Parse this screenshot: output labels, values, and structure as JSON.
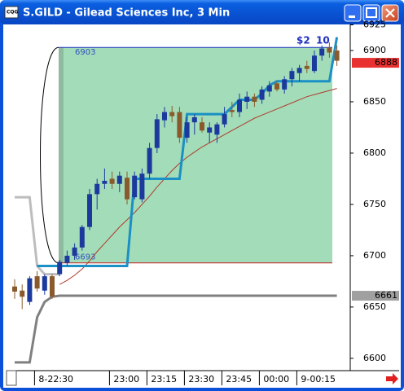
{
  "chart_data": {
    "type": "candlestick",
    "title": "S.GILD - Gilead Sciences Inc, 3 Min",
    "categories": [
      null,
      null,
      "8-22:30",
      null,
      null,
      null,
      null,
      null,
      null,
      null,
      null,
      null,
      "23:00",
      null,
      null,
      null,
      null,
      "23:15",
      null,
      null,
      null,
      null,
      "23:30",
      null,
      null,
      null,
      null,
      "23:45",
      null,
      null,
      null,
      null,
      "00:00",
      null,
      null,
      null,
      null,
      "9-00:15",
      null,
      null,
      null,
      null,
      null,
      null
    ],
    "open": [
      6670,
      6666,
      6655,
      6680,
      6666,
      6680,
      6682,
      6693,
      6700,
      6708,
      6728,
      6760,
      6770,
      6775,
      6770,
      6776,
      6757,
      6755,
      6780,
      6805,
      6832,
      6840,
      6840,
      6815,
      6830,
      6830,
      6820,
      6818,
      6828,
      6842,
      6840,
      6850,
      6855,
      6852,
      6860,
      6868,
      6862,
      6872,
      6878,
      6885,
      6880,
      6895,
      6903,
      6900
    ],
    "high": [
      6677,
      6672,
      6680,
      6685,
      6682,
      6682,
      6696,
      6705,
      6712,
      6730,
      6765,
      6775,
      6785,
      6782,
      6782,
      6782,
      6782,
      6785,
      6810,
      6838,
      6845,
      6846,
      6845,
      6835,
      6838,
      6835,
      6830,
      6830,
      6845,
      6850,
      6858,
      6860,
      6858,
      6865,
      6870,
      6870,
      6875,
      6883,
      6886,
      6890,
      6900,
      6905,
      6908,
      6905
    ],
    "low": [
      6658,
      6648,
      6652,
      6665,
      6662,
      6658,
      6680,
      6690,
      6696,
      6705,
      6725,
      6745,
      6765,
      6765,
      6762,
      6750,
      6755,
      6752,
      6775,
      6800,
      6825,
      6830,
      6810,
      6810,
      6818,
      6820,
      6810,
      6810,
      6825,
      6835,
      6835,
      6843,
      6845,
      6848,
      6855,
      6860,
      6858,
      6865,
      6870,
      6878,
      6878,
      6890,
      6893,
      6885
    ],
    "close": [
      6665,
      6660,
      6678,
      6668,
      6680,
      6660,
      6694,
      6700,
      6708,
      6728,
      6760,
      6770,
      6773,
      6770,
      6778,
      6755,
      6778,
      6780,
      6805,
      6833,
      6840,
      6836,
      6815,
      6830,
      6835,
      6822,
      6825,
      6828,
      6838,
      6840,
      6852,
      6855,
      6850,
      6862,
      6866,
      6862,
      6872,
      6880,
      6883,
      6882,
      6895,
      6902,
      6898,
      6890
    ],
    "up_color": "#1c3a9e",
    "down_color": "#8a5a2c",
    "lines": [
      {
        "color": "#bdbdbd",
        "width": 3,
        "values": [
          6757,
          6757,
          6757,
          6690,
          6682,
          6682,
          6682,
          null,
          null,
          null,
          null,
          null,
          null,
          null,
          null,
          null,
          null,
          null,
          null,
          null,
          null,
          null,
          null,
          null,
          null,
          null,
          null,
          null,
          null,
          null,
          null,
          null,
          null,
          null,
          null,
          null,
          null,
          null,
          null,
          null,
          null,
          null,
          null,
          null
        ]
      },
      {
        "color": "#808080",
        "width": 3,
        "values": [
          6596,
          6596,
          6596,
          6640,
          6655,
          6660,
          6661,
          6661,
          6661,
          6661,
          6661,
          6661,
          6661,
          6661,
          6661,
          6661,
          6661,
          6661,
          6661,
          6661,
          6661,
          6661,
          6661,
          6661,
          6661,
          6661,
          6661,
          6661,
          6661,
          6661,
          6661,
          6661,
          6661,
          6661,
          6661,
          6661,
          6661,
          6661,
          6661,
          6661,
          6661,
          6661,
          6661,
          6661
        ]
      },
      {
        "color": "#b03a2e",
        "width": 1,
        "values": [
          null,
          null,
          null,
          null,
          null,
          null,
          6672,
          6676,
          6681,
          6687,
          6695,
          6704,
          6712,
          6720,
          6728,
          6735,
          6742,
          6750,
          6758,
          6767,
          6775,
          6783,
          6790,
          6796,
          6801,
          6806,
          6810,
          6814,
          6818,
          6822,
          6826,
          6830,
          6834,
          6837,
          6840,
          6843,
          6846,
          6849,
          6852,
          6855,
          6857,
          6859,
          6861,
          6863
        ]
      },
      {
        "color": "#1a90c4",
        "width": 3,
        "values": [
          null,
          null,
          null,
          6690,
          6690,
          6690,
          6690,
          6690,
          6690,
          6690,
          6690,
          6690,
          6690,
          6690,
          6690,
          6690,
          6775,
          6775,
          6775,
          6775,
          6775,
          6775,
          6775,
          6838,
          6838,
          6838,
          6838,
          6838,
          6838,
          6845,
          6852,
          6852,
          6852,
          6858,
          6866,
          6870,
          6870,
          6870,
          6870,
          6870,
          6870,
          6870,
          6870,
          6913
        ]
      }
    ],
    "range_box": {
      "high": 6903,
      "low": 6693,
      "fill": "#a3dcb8"
    },
    "annotations": [
      "$2",
      "10"
    ],
    "last_price": 6888,
    "level_price": 6661,
    "ylim": [
      6588,
      6925
    ],
    "yticks": [
      6600,
      6650,
      6700,
      6750,
      6800,
      6850,
      6900,
      6925
    ]
  }
}
